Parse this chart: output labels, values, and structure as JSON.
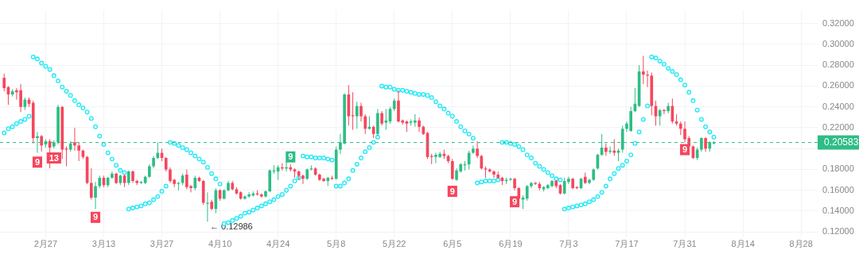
{
  "chart_data": {
    "type": "candlestick",
    "x": [
      "--02-17",
      "--02-18",
      "--02-19",
      "--02-20",
      "--02-21",
      "--02-22",
      "--02-23",
      "--02-24",
      "--02-25",
      "--02-26",
      "--02-27",
      "--02-28",
      "--03-01",
      "--03-02",
      "--03-03",
      "--03-04",
      "--03-05",
      "--03-06",
      "--03-07",
      "--03-08",
      "--03-09",
      "--03-10",
      "--03-11",
      "--03-12",
      "--03-13",
      "--03-14",
      "--03-15",
      "--03-16",
      "--03-17",
      "--03-18",
      "--03-19",
      "--03-20",
      "--03-21",
      "--03-22",
      "--03-23",
      "--03-24",
      "--03-25",
      "--03-26",
      "--03-27",
      "--03-28",
      "--03-29",
      "--03-30",
      "--03-31",
      "--04-01",
      "--04-02",
      "--04-03",
      "--04-04",
      "--04-05",
      "--04-06",
      "--04-07",
      "--04-08",
      "--04-09",
      "--04-10",
      "--04-11",
      "--04-12",
      "--04-13",
      "--04-14",
      "--04-15",
      "--04-16",
      "--04-17",
      "--04-18",
      "--04-19",
      "--04-20",
      "--04-21",
      "--04-22",
      "--04-23",
      "--04-24",
      "--04-25",
      "--04-26",
      "--04-27",
      "--04-28",
      "--04-29",
      "--04-30",
      "--05-01",
      "--05-02",
      "--05-03",
      "--05-04",
      "--05-05",
      "--05-06",
      "--05-07",
      "--05-08",
      "--05-09",
      "--05-10",
      "--05-11",
      "--05-12",
      "--05-13",
      "--05-14",
      "--05-15",
      "--05-16",
      "--05-17",
      "--05-18",
      "--05-19",
      "--05-20",
      "--05-21",
      "--05-22",
      "--05-23",
      "--05-24",
      "--05-25",
      "--05-26",
      "--05-27",
      "--05-28",
      "--05-29",
      "--05-30",
      "--05-31",
      "--06-01",
      "--06-02",
      "--06-03",
      "--06-04",
      "--06-05",
      "--06-06",
      "--06-07",
      "--06-08",
      "--06-09",
      "--06-10",
      "--06-11",
      "--06-12",
      "--06-13",
      "--06-14",
      "--06-15",
      "--06-16",
      "--06-17",
      "--06-18",
      "--06-19",
      "--06-20",
      "--06-21",
      "--06-22",
      "--06-23",
      "--06-24",
      "--06-25",
      "--06-26",
      "--06-27",
      "--06-28",
      "--06-29",
      "--06-30",
      "--07-01",
      "--07-02",
      "--07-03",
      "--07-04",
      "--07-05",
      "--07-06",
      "--07-07",
      "--07-08",
      "--07-09",
      "--07-10",
      "--07-11",
      "--07-12",
      "--07-13",
      "--07-14",
      "--07-15",
      "--07-16",
      "--07-17",
      "--07-18",
      "--07-19",
      "--07-20",
      "--07-21",
      "--07-22",
      "--07-23",
      "--07-24",
      "--07-25",
      "--07-26",
      "--07-27",
      "--07-28",
      "--07-29",
      "--07-30",
      "--07-31",
      "--08-01",
      "--08-02",
      "--08-03",
      "--08-04",
      "--08-05",
      "--08-06",
      "--08-07"
    ],
    "xlim": [
      "--02-16",
      "--09-01"
    ],
    "xticks": [
      {
        "value": "--02-27",
        "label": "2月27"
      },
      {
        "value": "--03-13",
        "label": "3月13"
      },
      {
        "value": "--03-27",
        "label": "3月27"
      },
      {
        "value": "--04-10",
        "label": "4月10"
      },
      {
        "value": "--04-24",
        "label": "4月24"
      },
      {
        "value": "--05-08",
        "label": "5月8"
      },
      {
        "value": "--05-22",
        "label": "5月22"
      },
      {
        "value": "--06-05",
        "label": "6月5"
      },
      {
        "value": "--06-19",
        "label": "6月19"
      },
      {
        "value": "--07-03",
        "label": "7月3"
      },
      {
        "value": "--07-17",
        "label": "7月17"
      },
      {
        "value": "--07-31",
        "label": "7月31"
      },
      {
        "value": "--08-14",
        "label": "8月14"
      },
      {
        "value": "--08-28",
        "label": "8月28"
      }
    ],
    "ylim": [
      0.115,
      0.333
    ],
    "yticks": [
      {
        "value": 0.12,
        "label": "0.12000"
      },
      {
        "value": 0.14,
        "label": "0.14000"
      },
      {
        "value": 0.16,
        "label": "0.16000"
      },
      {
        "value": 0.18,
        "label": "0.18000"
      },
      {
        "value": 0.2,
        "label": null
      },
      {
        "value": 0.22,
        "label": "0.22000"
      },
      {
        "value": 0.24,
        "label": "0.24000"
      },
      {
        "value": 0.26,
        "label": "0.26000"
      },
      {
        "value": 0.28,
        "label": "0.28000"
      },
      {
        "value": 0.3,
        "label": "0.30000"
      },
      {
        "value": 0.32,
        "label": "0.32000"
      }
    ],
    "grid": true,
    "marker": "circle",
    "series": [
      {
        "type": "candlestick",
        "ohlc": [
          [
            0.268,
            0.272,
            0.255,
            0.258
          ],
          [
            0.259,
            0.26,
            0.242,
            0.252
          ],
          [
            0.252,
            0.257,
            0.25,
            0.255
          ],
          [
            0.256,
            0.258,
            0.247,
            0.254
          ],
          [
            0.256,
            0.262,
            0.235,
            0.24
          ],
          [
            0.24,
            0.249,
            0.237,
            0.247
          ],
          [
            0.247,
            0.249,
            0.24,
            0.243
          ],
          [
            0.244,
            0.246,
            0.205,
            0.21
          ],
          [
            0.21,
            0.216,
            0.196,
            0.212
          ],
          [
            0.212,
            0.213,
            0.197,
            0.203
          ],
          [
            0.204,
            0.209,
            0.201,
            0.207
          ],
          [
            0.207,
            0.209,
            0.181,
            0.201
          ],
          [
            0.202,
            0.208,
            0.2,
            0.206
          ],
          [
            0.206,
            0.242,
            0.204,
            0.24
          ],
          [
            0.24,
            0.241,
            0.19,
            0.199
          ],
          [
            0.2,
            0.202,
            0.183,
            0.199
          ],
          [
            0.199,
            0.207,
            0.197,
            0.205
          ],
          [
            0.206,
            0.22,
            0.198,
            0.203
          ],
          [
            0.203,
            0.206,
            0.188,
            0.198
          ],
          [
            0.198,
            0.199,
            0.19,
            0.192
          ],
          [
            0.192,
            0.193,
            0.166,
            0.167
          ],
          [
            0.167,
            0.181,
            0.151,
            0.153
          ],
          [
            0.153,
            0.168,
            0.142,
            0.164
          ],
          [
            0.164,
            0.174,
            0.162,
            0.172
          ],
          [
            0.172,
            0.174,
            0.163,
            0.165
          ],
          [
            0.165,
            0.173,
            0.163,
            0.172
          ],
          [
            0.172,
            0.178,
            0.171,
            0.176
          ],
          [
            0.176,
            0.177,
            0.166,
            0.167
          ],
          [
            0.167,
            0.175,
            0.165,
            0.174
          ],
          [
            0.174,
            0.175,
            0.163,
            0.167
          ],
          [
            0.167,
            0.179,
            0.165,
            0.178
          ],
          [
            0.178,
            0.179,
            0.167,
            0.169
          ],
          [
            0.169,
            0.17,
            0.165,
            0.167
          ],
          [
            0.167,
            0.169,
            0.166,
            0.168
          ],
          [
            0.167,
            0.174,
            0.166,
            0.173
          ],
          [
            0.173,
            0.185,
            0.172,
            0.183
          ],
          [
            0.183,
            0.193,
            0.181,
            0.191
          ],
          [
            0.191,
            0.206,
            0.19,
            0.196
          ],
          [
            0.196,
            0.2,
            0.188,
            0.191
          ],
          [
            0.191,
            0.192,
            0.178,
            0.18
          ],
          [
            0.18,
            0.182,
            0.167,
            0.169
          ],
          [
            0.17,
            0.171,
            0.163,
            0.166
          ],
          [
            0.166,
            0.168,
            0.16,
            0.167
          ],
          [
            0.167,
            0.176,
            0.165,
            0.174
          ],
          [
            0.175,
            0.18,
            0.161,
            0.163
          ],
          [
            0.164,
            0.165,
            0.158,
            0.162
          ],
          [
            0.162,
            0.174,
            0.16,
            0.172
          ],
          [
            0.172,
            0.173,
            0.168,
            0.169
          ],
          [
            0.169,
            0.17,
            0.146,
            0.148
          ],
          [
            0.147,
            0.158,
            0.12986,
            0.148
          ],
          [
            0.149,
            0.151,
            0.141,
            0.142
          ],
          [
            0.142,
            0.162,
            0.138,
            0.16
          ],
          [
            0.16,
            0.161,
            0.15,
            0.152
          ],
          [
            0.152,
            0.161,
            0.151,
            0.16
          ],
          [
            0.16,
            0.169,
            0.159,
            0.167
          ],
          [
            0.167,
            0.169,
            0.16,
            0.161
          ],
          [
            0.161,
            0.163,
            0.156,
            0.157
          ],
          [
            0.158,
            0.159,
            0.151,
            0.152
          ],
          [
            0.152,
            0.155,
            0.151,
            0.154
          ],
          [
            0.154,
            0.158,
            0.153,
            0.156
          ],
          [
            0.155,
            0.159,
            0.154,
            0.157
          ],
          [
            0.157,
            0.16,
            0.155,
            0.156
          ],
          [
            0.156,
            0.157,
            0.153,
            0.154
          ],
          [
            0.154,
            0.16,
            0.153,
            0.159
          ],
          [
            0.159,
            0.18,
            0.158,
            0.179
          ],
          [
            0.178,
            0.184,
            0.176,
            0.179
          ],
          [
            0.178,
            0.184,
            0.17,
            0.182
          ],
          [
            0.182,
            0.186,
            0.179,
            0.181
          ],
          [
            0.181,
            0.188,
            0.178,
            0.182
          ],
          [
            0.182,
            0.185,
            0.178,
            0.18
          ],
          [
            0.18,
            0.181,
            0.172,
            0.178
          ],
          [
            0.178,
            0.179,
            0.17,
            0.174
          ],
          [
            0.174,
            0.175,
            0.166,
            0.171
          ],
          [
            0.171,
            0.181,
            0.17,
            0.18
          ],
          [
            0.18,
            0.184,
            0.179,
            0.181
          ],
          [
            0.181,
            0.182,
            0.174,
            0.175
          ],
          [
            0.175,
            0.176,
            0.169,
            0.17
          ],
          [
            0.171,
            0.172,
            0.168,
            0.169
          ],
          [
            0.169,
            0.173,
            0.164,
            0.172
          ],
          [
            0.172,
            0.174,
            0.17,
            0.171
          ],
          [
            0.171,
            0.202,
            0.17,
            0.199
          ],
          [
            0.199,
            0.214,
            0.195,
            0.206
          ],
          [
            0.205,
            0.253,
            0.204,
            0.252
          ],
          [
            0.252,
            0.261,
            0.222,
            0.231
          ],
          [
            0.232,
            0.254,
            0.218,
            0.231
          ],
          [
            0.231,
            0.245,
            0.219,
            0.241
          ],
          [
            0.241,
            0.244,
            0.226,
            0.231
          ],
          [
            0.231,
            0.233,
            0.214,
            0.219
          ],
          [
            0.219,
            0.231,
            0.218,
            0.221
          ],
          [
            0.221,
            0.222,
            0.21,
            0.214
          ],
          [
            0.214,
            0.238,
            0.212,
            0.234
          ],
          [
            0.234,
            0.236,
            0.222,
            0.224
          ],
          [
            0.225,
            0.238,
            0.218,
            0.227
          ],
          [
            0.226,
            0.24,
            0.224,
            0.238
          ],
          [
            0.238,
            0.248,
            0.236,
            0.246
          ],
          [
            0.246,
            0.256,
            0.225,
            0.226
          ],
          [
            0.227,
            0.228,
            0.223,
            0.225
          ],
          [
            0.226,
            0.227,
            0.216,
            0.224
          ],
          [
            0.225,
            0.228,
            0.222,
            0.226
          ],
          [
            0.225,
            0.233,
            0.221,
            0.227
          ],
          [
            0.227,
            0.23,
            0.216,
            0.221
          ],
          [
            0.221,
            0.222,
            0.213,
            0.214
          ],
          [
            0.215,
            0.216,
            0.19,
            0.192
          ],
          [
            0.193,
            0.195,
            0.185,
            0.192
          ],
          [
            0.192,
            0.196,
            0.186,
            0.194
          ],
          [
            0.192,
            0.197,
            0.191,
            0.195
          ],
          [
            0.195,
            0.199,
            0.19,
            0.193
          ],
          [
            0.193,
            0.194,
            0.186,
            0.188
          ],
          [
            0.188,
            0.19,
            0.17,
            0.171
          ],
          [
            0.17,
            0.181,
            0.169,
            0.179
          ],
          [
            0.178,
            0.186,
            0.177,
            0.185
          ],
          [
            0.184,
            0.188,
            0.179,
            0.185
          ],
          [
            0.185,
            0.198,
            0.18,
            0.196
          ],
          [
            0.196,
            0.203,
            0.195,
            0.2
          ],
          [
            0.2,
            0.207,
            0.191,
            0.193
          ],
          [
            0.193,
            0.194,
            0.18,
            0.181
          ],
          [
            0.181,
            0.183,
            0.172,
            0.18
          ],
          [
            0.18,
            0.181,
            0.177,
            0.178
          ],
          [
            0.178,
            0.179,
            0.172,
            0.175
          ],
          [
            0.175,
            0.178,
            0.171,
            0.172
          ],
          [
            0.172,
            0.173,
            0.165,
            0.169
          ],
          [
            0.169,
            0.172,
            0.166,
            0.17
          ],
          [
            0.17,
            0.172,
            0.169,
            0.171
          ],
          [
            0.171,
            0.172,
            0.16,
            0.162
          ],
          [
            0.162,
            0.163,
            0.15,
            0.152
          ],
          [
            0.151,
            0.155,
            0.142,
            0.153
          ],
          [
            0.152,
            0.165,
            0.15,
            0.164
          ],
          [
            0.164,
            0.168,
            0.162,
            0.167
          ],
          [
            0.167,
            0.168,
            0.165,
            0.166
          ],
          [
            0.166,
            0.168,
            0.16,
            0.162
          ],
          [
            0.161,
            0.164,
            0.159,
            0.163
          ],
          [
            0.162,
            0.166,
            0.161,
            0.165
          ],
          [
            0.164,
            0.17,
            0.163,
            0.169
          ],
          [
            0.169,
            0.17,
            0.162,
            0.164
          ],
          [
            0.165,
            0.166,
            0.156,
            0.157
          ],
          [
            0.157,
            0.172,
            0.156,
            0.169
          ],
          [
            0.168,
            0.173,
            0.166,
            0.171
          ],
          [
            0.171,
            0.172,
            0.161,
            0.162
          ],
          [
            0.163,
            0.164,
            0.161,
            0.162
          ],
          [
            0.162,
            0.172,
            0.161,
            0.171
          ],
          [
            0.173,
            0.177,
            0.166,
            0.167
          ],
          [
            0.167,
            0.171,
            0.166,
            0.17
          ],
          [
            0.17,
            0.181,
            0.169,
            0.18
          ],
          [
            0.181,
            0.195,
            0.18,
            0.194
          ],
          [
            0.194,
            0.214,
            0.193,
            0.201
          ],
          [
            0.201,
            0.205,
            0.193,
            0.197
          ],
          [
            0.197,
            0.202,
            0.195,
            0.198
          ],
          [
            0.198,
            0.209,
            0.193,
            0.196
          ],
          [
            0.196,
            0.2,
            0.188,
            0.198
          ],
          [
            0.199,
            0.222,
            0.196,
            0.219
          ],
          [
            0.219,
            0.226,
            0.216,
            0.224
          ],
          [
            0.217,
            0.24,
            0.216,
            0.236
          ],
          [
            0.236,
            0.258,
            0.235,
            0.243
          ],
          [
            0.241,
            0.28,
            0.24,
            0.274
          ],
          [
            0.274,
            0.289,
            0.262,
            0.271
          ],
          [
            0.271,
            0.275,
            0.259,
            0.27
          ],
          [
            0.27,
            0.273,
            0.232,
            0.241
          ],
          [
            0.241,
            0.246,
            0.222,
            0.231
          ],
          [
            0.231,
            0.238,
            0.222,
            0.237
          ],
          [
            0.237,
            0.238,
            0.233,
            0.236
          ],
          [
            0.236,
            0.244,
            0.234,
            0.241
          ],
          [
            0.241,
            0.248,
            0.224,
            0.226
          ],
          [
            0.226,
            0.233,
            0.222,
            0.224
          ],
          [
            0.224,
            0.226,
            0.213,
            0.219
          ],
          [
            0.219,
            0.226,
            0.206,
            0.209
          ],
          [
            0.21,
            0.212,
            0.199,
            0.202
          ],
          [
            0.202,
            0.203,
            0.19,
            0.191
          ],
          [
            0.191,
            0.201,
            0.189,
            0.199
          ],
          [
            0.199,
            0.211,
            0.197,
            0.21
          ],
          [
            0.21,
            0.211,
            0.197,
            0.2
          ],
          [
            0.2,
            0.207,
            0.197,
            0.206
          ],
          [
            0.205,
            0.207,
            0.204,
            0.20583
          ]
        ],
        "colors": [
          "#f6465d",
          "#f6465d",
          "#2ebd85",
          "#f6465d",
          "#f6465d",
          "#2ebd85",
          "#f6465d",
          "#f6465d",
          "#2ebd85",
          "#f6465d",
          "#2ebd85",
          "#f6465d",
          "#2ebd85",
          "#2ebd85",
          "#f6465d",
          "#f6465d",
          "#2ebd85",
          "#f6465d",
          "#f6465d",
          "#f6465d",
          "#f6465d",
          "#f6465d",
          "#2ebd85",
          "#2ebd85",
          "#f6465d",
          "#2ebd85",
          "#2ebd85",
          "#f6465d",
          "#2ebd85",
          "#f6465d",
          "#2ebd85",
          "#f6465d",
          "#f6465d",
          "#2ebd85",
          "#2ebd85",
          "#2ebd85",
          "#2ebd85",
          "#2ebd85",
          "#f6465d",
          "#f6465d",
          "#f6465d",
          "#f6465d",
          "#2ebd85",
          "#2ebd85",
          "#f6465d",
          "#f6465d",
          "#2ebd85",
          "#f6465d",
          "#f6465d",
          "#2ebd85",
          "#f6465d",
          "#2ebd85",
          "#f6465d",
          "#2ebd85",
          "#2ebd85",
          "#f6465d",
          "#f6465d",
          "#f6465d",
          "#2ebd85",
          "#2ebd85",
          "#2ebd85",
          "#f6465d",
          "#f6465d",
          "#2ebd85",
          "#2ebd85",
          "#2ebd85",
          "#2ebd85",
          "#f6465d",
          "#2ebd85",
          "#f6465d",
          "#f6465d",
          "#f6465d",
          "#f6465d",
          "#2ebd85",
          "#2ebd85",
          "#f6465d",
          "#f6465d",
          "#f6465d",
          "#2ebd85",
          "#f6465d",
          "#2ebd85",
          "#2ebd85",
          "#2ebd85",
          "#f6465d",
          "#f6465d",
          "#2ebd85",
          "#f6465d",
          "#f6465d",
          "#2ebd85",
          "#f6465d",
          "#2ebd85",
          "#f6465d",
          "#2ebd85",
          "#2ebd85",
          "#2ebd85",
          "#f6465d",
          "#f6465d",
          "#f6465d",
          "#2ebd85",
          "#2ebd85",
          "#f6465d",
          "#f6465d",
          "#f6465d",
          "#f6465d",
          "#2ebd85",
          "#2ebd85",
          "#f6465d",
          "#f6465d",
          "#f6465d",
          "#2ebd85",
          "#2ebd85",
          "#2ebd85",
          "#2ebd85",
          "#2ebd85",
          "#f6465d",
          "#f6465d",
          "#f6465d",
          "#f6465d",
          "#f6465d",
          "#f6465d",
          "#f6465d",
          "#2ebd85",
          "#2ebd85",
          "#f6465d",
          "#f6465d",
          "#2ebd85",
          "#2ebd85",
          "#2ebd85",
          "#f6465d",
          "#f6465d",
          "#2ebd85",
          "#2ebd85",
          "#2ebd85",
          "#f6465d",
          "#f6465d",
          "#2ebd85",
          "#2ebd85",
          "#f6465d",
          "#f6465d",
          "#2ebd85",
          "#f6465d",
          "#2ebd85",
          "#2ebd85",
          "#2ebd85",
          "#2ebd85",
          "#f6465d",
          "#2ebd85",
          "#f6465d",
          "#2ebd85",
          "#2ebd85",
          "#2ebd85",
          "#2ebd85",
          "#2ebd85",
          "#2ebd85",
          "#f6465d",
          "#f6465d",
          "#f6465d",
          "#f6465d",
          "#2ebd85",
          "#f6465d",
          "#2ebd85",
          "#f6465d",
          "#f6465d",
          "#f6465d",
          "#f6465d",
          "#f6465d",
          "#f6465d",
          "#2ebd85",
          "#2ebd85",
          "#f6465d",
          "#2ebd85",
          "#2ebd85"
        ]
      },
      {
        "type": "scatter",
        "color": "#1de9f6",
        "values": [
          0.215,
          0.219,
          0.221,
          0.224,
          0.226,
          0.228,
          0.231,
          0.288,
          0.286,
          0.282,
          0.279,
          0.276,
          0.27,
          0.265,
          0.259,
          0.255,
          0.251,
          0.246,
          0.242,
          0.239,
          0.235,
          0.229,
          0.221,
          0.212,
          0.204,
          0.196,
          0.19,
          0.184,
          0.179,
          0.177,
          0.142,
          0.143,
          0.144,
          0.145,
          0.147,
          0.148,
          0.151,
          0.154,
          0.159,
          0.164,
          0.206,
          0.205,
          0.203,
          0.201,
          0.199,
          0.196,
          0.193,
          0.19,
          0.187,
          0.182,
          0.176,
          0.171,
          0.166,
          0.128,
          0.129,
          0.131,
          0.133,
          0.135,
          0.138,
          0.139,
          0.141,
          0.143,
          0.145,
          0.147,
          0.149,
          0.151,
          0.154,
          0.156,
          0.16,
          0.164,
          0.169,
          0.172,
          0.193,
          0.192,
          0.192,
          0.191,
          0.191,
          0.191,
          0.19,
          0.189,
          0.164,
          0.164,
          0.167,
          0.171,
          0.179,
          0.185,
          0.191,
          0.197,
          0.201,
          0.206,
          0.211,
          0.26,
          0.259,
          0.259,
          0.257,
          0.256,
          0.256,
          0.255,
          0.254,
          0.253,
          0.252,
          0.252,
          0.251,
          0.249,
          0.245,
          0.241,
          0.238,
          0.234,
          0.231,
          0.226,
          0.221,
          0.217,
          0.214,
          0.21,
          0.167,
          0.168,
          0.169,
          0.169,
          0.169,
          0.17,
          0.206,
          0.206,
          0.205,
          0.204,
          0.202,
          0.199,
          0.194,
          0.191,
          0.186,
          0.183,
          0.18,
          0.177,
          0.174,
          0.171,
          0.17,
          0.142,
          0.143,
          0.144,
          0.145,
          0.146,
          0.147,
          0.149,
          0.151,
          0.154,
          0.158,
          0.164,
          0.171,
          0.176,
          0.181,
          0.184,
          0.188,
          0.194,
          0.205,
          0.216,
          0.228,
          0.241,
          0.288,
          0.287,
          0.284,
          0.281,
          0.277,
          0.274,
          0.271,
          0.266,
          0.261,
          0.254,
          0.246,
          0.237,
          0.228,
          0.221,
          0.216,
          0.211
        ]
      }
    ],
    "ref_lines": [
      {
        "axis": "y",
        "value": 0.20583,
        "label": "0.20583",
        "color": "#2ebd85",
        "line_style": "dashed"
      }
    ],
    "annotations": [
      {
        "text": "9",
        "x": "--02-25",
        "y": 0.187
      },
      {
        "text": "13",
        "x": "--03-01",
        "y": 0.191
      },
      {
        "text": "9",
        "x": "--03-11",
        "y": 0.134
      },
      {
        "text": "9",
        "x": "--04-27",
        "y": 0.192
      },
      {
        "text": "← 0.12986",
        "x": "--04-07",
        "y": 0.12986
      },
      {
        "text": "9",
        "x": "--06-05",
        "y": 0.159
      },
      {
        "text": "9",
        "x": "--06-20",
        "y": 0.149
      },
      {
        "text": "9",
        "x": "--07-31",
        "y": 0.199
      }
    ]
  }
}
